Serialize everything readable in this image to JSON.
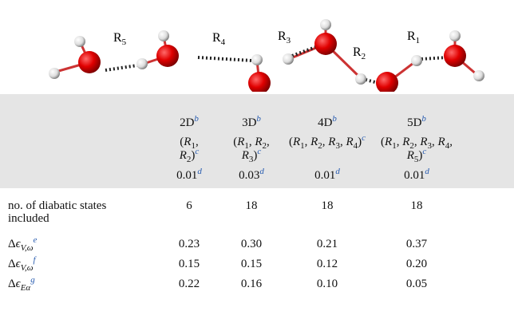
{
  "figure": {
    "labels": [
      {
        "base": "R",
        "sub": "5"
      },
      {
        "base": "R",
        "sub": "4"
      },
      {
        "base": "R",
        "sub": "3"
      },
      {
        "base": "R",
        "sub": "2"
      },
      {
        "base": "R",
        "sub": "1"
      }
    ]
  },
  "table": {
    "columns": [
      {
        "text": "2D",
        "sup": "b"
      },
      {
        "text": "3D",
        "sup": "b"
      },
      {
        "text": "4D",
        "sup": "b"
      },
      {
        "text": "5D",
        "sup": "b"
      }
    ],
    "coordinates": [
      {
        "open": "(",
        "items": [
          {
            "base": "R",
            "sub": "1"
          },
          {
            "base": "R",
            "sub": "2"
          }
        ],
        "sep": ",",
        "close": ")",
        "sup": "c"
      },
      {
        "open": "(",
        "items": [
          {
            "base": "R",
            "sub": "1"
          },
          {
            "base": "R",
            "sub": "2"
          },
          {
            "base": "R",
            "sub": "3"
          }
        ],
        "sep": ",",
        "close": ")",
        "sup": "c"
      },
      {
        "open": "(",
        "items": [
          {
            "base": "R",
            "sub": "1"
          },
          {
            "base": "R",
            "sub": "2"
          },
          {
            "base": "R",
            "sub": "3"
          },
          {
            "base": "R",
            "sub": "4"
          }
        ],
        "sep": ",",
        "close": ")",
        "sup": "c"
      },
      {
        "open": "(",
        "items": [
          {
            "base": "R",
            "sub": "1"
          },
          {
            "base": "R",
            "sub": "2"
          },
          {
            "base": "R",
            "sub": "3"
          },
          {
            "base": "R",
            "sub": "4"
          },
          {
            "base": "R",
            "sub": "5"
          }
        ],
        "sep": ",",
        "close": ")",
        "sup": "c"
      }
    ],
    "thresholds": [
      {
        "text": "0.01",
        "sup": "d"
      },
      {
        "text": "0.03",
        "sup": "d"
      },
      {
        "text": "0.01",
        "sup": "d"
      },
      {
        "text": "0.01",
        "sup": "d"
      }
    ],
    "rows": [
      {
        "label": {
          "text": "no. of diabatic states included"
        },
        "values": [
          "6",
          "18",
          "18",
          "18"
        ]
      },
      {
        "label": {
          "delta": "Δ",
          "eps": "ϵ",
          "sub": "V,ω",
          "sup": "e"
        },
        "values": [
          "0.23",
          "0.30",
          "0.21",
          "0.37"
        ]
      },
      {
        "label": {
          "delta": "Δ",
          "eps": "ϵ",
          "sub": "V,ω",
          "sup": "f"
        },
        "values": [
          "0.15",
          "0.15",
          "0.12",
          "0.20"
        ]
      },
      {
        "label": {
          "delta": "Δ",
          "eps": "ϵ",
          "sub": "Eα",
          "sup": "g"
        },
        "values": [
          "0.22",
          "0.16",
          "0.10",
          "0.05"
        ]
      }
    ]
  }
}
